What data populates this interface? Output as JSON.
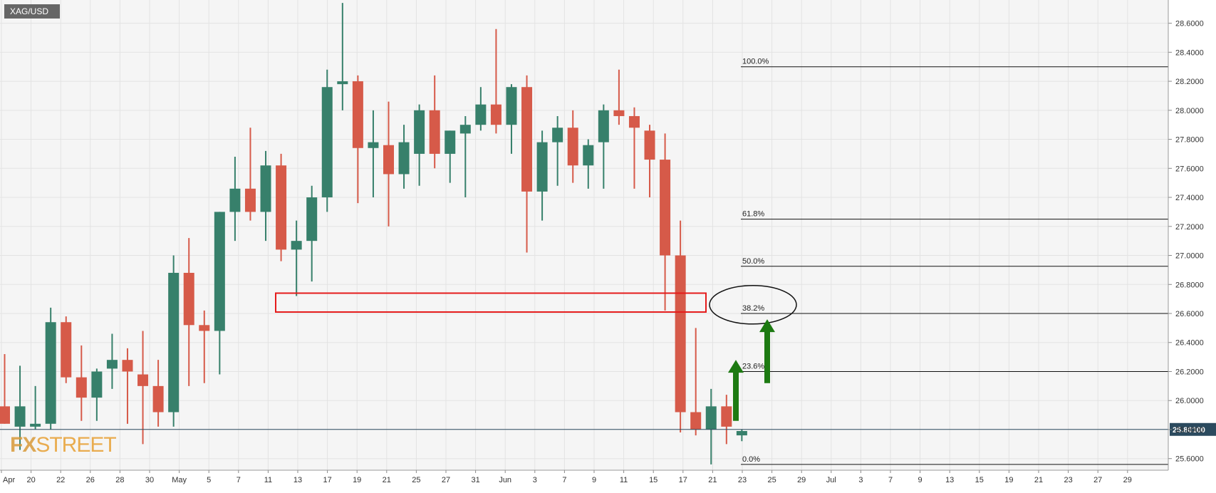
{
  "symbol": "XAG/USD",
  "watermark": {
    "fx": "FX",
    "street": "STREET"
  },
  "colors": {
    "background": "#f5f5f5",
    "grid": "#e3e3e3",
    "bull": "#37806b",
    "bear": "#d65a49",
    "wick_bull": "#37806b",
    "wick_bear": "#d65a49",
    "fib": "#111111",
    "price_line": "#2b4a5e",
    "price_label_bg": "#2b4a5e",
    "highlight_box": "#e51b1b",
    "arrow": "#1d7a12",
    "symbol_bg": "#666666",
    "watermark": "#e8a033"
  },
  "chart_data": {
    "type": "candlestick",
    "title": "XAG/USD",
    "ylim": [
      25.52,
      28.76
    ],
    "y_ticks": [
      "25.6000",
      "25.8000",
      "26.0000",
      "26.2000",
      "26.4000",
      "26.6000",
      "26.8000",
      "27.0000",
      "27.2000",
      "27.4000",
      "27.6000",
      "27.8000",
      "28.0000",
      "28.2000",
      "28.4000",
      "28.6000"
    ],
    "x_ticks": [
      "Apr",
      "20",
      "22",
      "26",
      "28",
      "30",
      "May",
      "5",
      "7",
      "11",
      "13",
      "17",
      "19",
      "21",
      "25",
      "27",
      "31",
      "Jun",
      "3",
      "7",
      "9",
      "11",
      "15",
      "17",
      "21",
      "23",
      "25",
      "29",
      "Jul",
      "3",
      "7",
      "9",
      "13",
      "15",
      "19",
      "21",
      "23",
      "27",
      "29"
    ],
    "current_price": "25.80100",
    "candles": [
      {
        "o": 25.96,
        "h": 26.32,
        "l": 25.84,
        "c": 25.84
      },
      {
        "o": 25.82,
        "h": 26.24,
        "l": 25.66,
        "c": 25.96
      },
      {
        "o": 25.82,
        "h": 26.1,
        "l": 25.8,
        "c": 25.84
      },
      {
        "o": 25.84,
        "h": 26.64,
        "l": 25.8,
        "c": 26.54
      },
      {
        "o": 26.54,
        "h": 26.58,
        "l": 26.12,
        "c": 26.16
      },
      {
        "o": 26.16,
        "h": 26.38,
        "l": 25.86,
        "c": 26.02
      },
      {
        "o": 26.02,
        "h": 26.22,
        "l": 25.86,
        "c": 26.2
      },
      {
        "o": 26.22,
        "h": 26.46,
        "l": 26.08,
        "c": 26.28
      },
      {
        "o": 26.28,
        "h": 26.36,
        "l": 25.84,
        "c": 26.2
      },
      {
        "o": 26.18,
        "h": 26.48,
        "l": 25.7,
        "c": 26.1
      },
      {
        "o": 26.1,
        "h": 26.28,
        "l": 25.82,
        "c": 25.92
      },
      {
        "o": 25.92,
        "h": 27.0,
        "l": 25.82,
        "c": 26.88
      },
      {
        "o": 26.88,
        "h": 27.12,
        "l": 26.1,
        "c": 26.52
      },
      {
        "o": 26.52,
        "h": 26.62,
        "l": 26.12,
        "c": 26.48
      },
      {
        "o": 26.48,
        "h": 27.3,
        "l": 26.18,
        "c": 27.3
      },
      {
        "o": 27.3,
        "h": 27.68,
        "l": 27.1,
        "c": 27.46
      },
      {
        "o": 27.46,
        "h": 27.88,
        "l": 27.24,
        "c": 27.3
      },
      {
        "o": 27.3,
        "h": 27.72,
        "l": 27.1,
        "c": 27.62
      },
      {
        "o": 27.62,
        "h": 27.7,
        "l": 26.96,
        "c": 27.04
      },
      {
        "o": 27.04,
        "h": 27.24,
        "l": 26.72,
        "c": 27.1
      },
      {
        "o": 27.1,
        "h": 27.48,
        "l": 26.82,
        "c": 27.4
      },
      {
        "o": 27.4,
        "h": 28.28,
        "l": 27.3,
        "c": 28.16
      },
      {
        "o": 28.18,
        "h": 28.74,
        "l": 28.0,
        "c": 28.2
      },
      {
        "o": 28.2,
        "h": 28.24,
        "l": 27.36,
        "c": 27.74
      },
      {
        "o": 27.74,
        "h": 28.0,
        "l": 27.4,
        "c": 27.78
      },
      {
        "o": 27.76,
        "h": 28.06,
        "l": 27.2,
        "c": 27.56
      },
      {
        "o": 27.56,
        "h": 27.9,
        "l": 27.46,
        "c": 27.78
      },
      {
        "o": 27.7,
        "h": 28.04,
        "l": 27.48,
        "c": 28.0
      },
      {
        "o": 28.0,
        "h": 28.24,
        "l": 27.6,
        "c": 27.7
      },
      {
        "o": 27.7,
        "h": 27.86,
        "l": 27.5,
        "c": 27.86
      },
      {
        "o": 27.84,
        "h": 27.96,
        "l": 27.4,
        "c": 27.9
      },
      {
        "o": 27.9,
        "h": 28.16,
        "l": 27.86,
        "c": 28.04
      },
      {
        "o": 28.04,
        "h": 28.56,
        "l": 27.84,
        "c": 27.9
      },
      {
        "o": 27.9,
        "h": 28.18,
        "l": 27.7,
        "c": 28.16
      },
      {
        "o": 28.16,
        "h": 28.24,
        "l": 27.02,
        "c": 27.44
      },
      {
        "o": 27.44,
        "h": 27.86,
        "l": 27.24,
        "c": 27.78
      },
      {
        "o": 27.78,
        "h": 27.96,
        "l": 27.48,
        "c": 27.88
      },
      {
        "o": 27.88,
        "h": 28.0,
        "l": 27.5,
        "c": 27.62
      },
      {
        "o": 27.62,
        "h": 27.8,
        "l": 27.46,
        "c": 27.76
      },
      {
        "o": 27.78,
        "h": 28.04,
        "l": 27.46,
        "c": 28.0
      },
      {
        "o": 28.0,
        "h": 28.28,
        "l": 27.9,
        "c": 27.96
      },
      {
        "o": 27.96,
        "h": 28.02,
        "l": 27.46,
        "c": 27.88
      },
      {
        "o": 27.86,
        "h": 27.9,
        "l": 27.4,
        "c": 27.66
      },
      {
        "o": 27.66,
        "h": 27.84,
        "l": 26.62,
        "c": 27.0
      },
      {
        "o": 27.0,
        "h": 27.24,
        "l": 25.78,
        "c": 25.92
      },
      {
        "o": 25.92,
        "h": 26.5,
        "l": 25.76,
        "c": 25.8
      },
      {
        "o": 25.8,
        "h": 26.08,
        "l": 25.56,
        "c": 25.96
      },
      {
        "o": 25.96,
        "h": 26.04,
        "l": 25.7,
        "c": 25.82
      },
      {
        "o": 25.76,
        "h": 25.8,
        "l": 25.72,
        "c": 25.79
      }
    ],
    "fib_levels": [
      {
        "label": "100.0%",
        "value": 28.3
      },
      {
        "label": "61.8%",
        "value": 27.25
      },
      {
        "label": "50.0%",
        "value": 26.925
      },
      {
        "label": "38.2%",
        "value": 26.6
      },
      {
        "label": "23.6%",
        "value": 26.2
      },
      {
        "label": "0.0%",
        "value": 25.56
      }
    ],
    "highlight_zone": {
      "top": 26.74,
      "bottom": 26.61
    },
    "arrows": [
      {
        "from": 25.86,
        "to": 26.28
      },
      {
        "from": 26.12,
        "to": 26.56
      }
    ],
    "ellipse_level": 26.66
  }
}
